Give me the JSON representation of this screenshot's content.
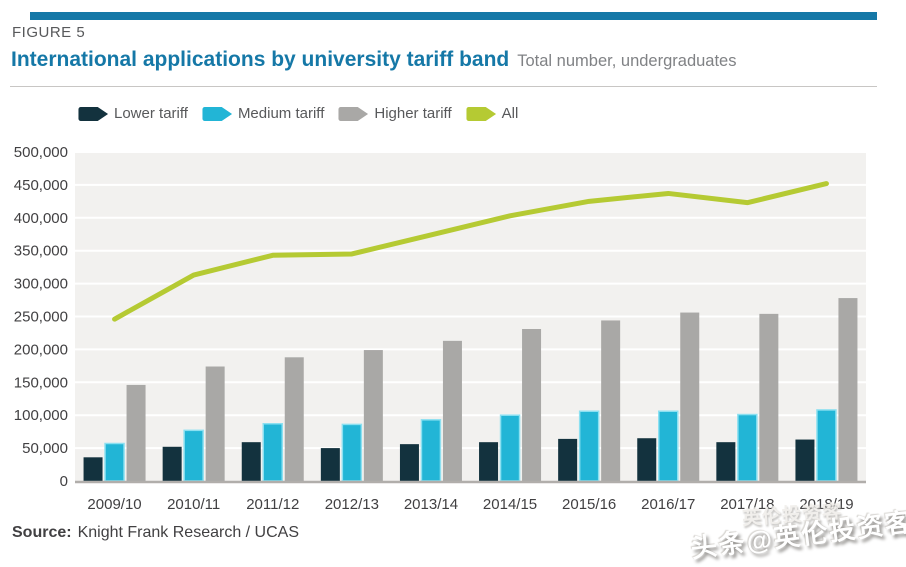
{
  "header": {
    "figure_label": "FIGURE 5",
    "title": "International applications by university tariff band",
    "subtitle": "Total number, undergraduates"
  },
  "colors": {
    "accent_bar": "#1578a7",
    "title": "#1578a7",
    "plot_background": "#f2f1ef",
    "gridline": "#ffffff",
    "axis_line": "#b1aeab",
    "tick_text": "#414042"
  },
  "legend": [
    {
      "label": "Lower tariff",
      "color": "#13323e"
    },
    {
      "label": "Medium tariff",
      "color": "#22b5d6"
    },
    {
      "label": "Higher tariff",
      "color": "#a9a8a6"
    },
    {
      "label": "All",
      "color": "#b5ca33"
    }
  ],
  "chart_data": {
    "type": "bar",
    "title": "International applications by university tariff band",
    "subtitle": "Total number, undergraduates",
    "xlabel": "",
    "ylabel": "",
    "categories": [
      "2009/10",
      "2010/11",
      "2011/12",
      "2012/13",
      "2013/14",
      "2014/15",
      "2015/16",
      "2016/17",
      "2017/18",
      "2018/19"
    ],
    "series": [
      {
        "name": "Lower tariff",
        "type": "bar",
        "color": "#13323e",
        "values": [
          36000,
          52000,
          59000,
          50000,
          56000,
          59000,
          64000,
          65000,
          59000,
          63000
        ]
      },
      {
        "name": "Medium tariff",
        "type": "bar",
        "color": "#22b5d6",
        "edge": "#8ce0f1",
        "values": [
          57000,
          77000,
          87000,
          86000,
          93000,
          100000,
          106000,
          106000,
          101000,
          108000
        ]
      },
      {
        "name": "Higher tariff",
        "type": "bar",
        "color": "#a9a8a6",
        "values": [
          146000,
          174000,
          188000,
          199000,
          213000,
          231000,
          244000,
          256000,
          254000,
          278000
        ]
      },
      {
        "name": "All",
        "type": "line",
        "color": "#b5ca33",
        "values": [
          246000,
          313000,
          343000,
          345000,
          374000,
          403000,
          425000,
          437000,
          423000,
          452000
        ]
      }
    ],
    "ylim": [
      0,
      500000
    ],
    "y_tick_step": 50000,
    "y_ticks": [
      "0",
      "50,000",
      "100,000",
      "150,000",
      "200,000",
      "250,000",
      "300,000",
      "350,000",
      "400,000",
      "450,000",
      "500,000"
    ],
    "grid": true,
    "legend_position": "top-left"
  },
  "source": {
    "label": "Source:",
    "text": "Knight Frank Research / UCAS"
  },
  "watermark": {
    "ghost": "英伦投资客",
    "text": "头条@英伦投资客"
  }
}
